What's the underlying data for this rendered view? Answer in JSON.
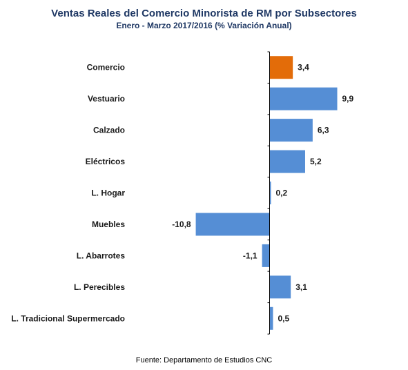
{
  "chart_data": {
    "type": "bar",
    "orientation": "horizontal",
    "title": "Ventas Reales del Comercio Minorista de RM por Subsectores",
    "subtitle": "Enero - Marzo  2017/2016 (% Variación Anual)",
    "categories": [
      "Comercio",
      "Vestuario",
      "Calzado",
      "Eléctricos",
      "L. Hogar",
      "Muebles",
      "L. Abarrotes",
      "L. Perecibles",
      "L. Tradicional Supermercado"
    ],
    "values": [
      3.4,
      9.9,
      6.3,
      5.2,
      0.2,
      -10.8,
      -1.1,
      3.1,
      0.5
    ],
    "value_labels": [
      "3,4",
      "9,9",
      "6,3",
      "5,2",
      "0,2",
      "-10,8",
      "-1,1",
      "3,1",
      "0,5"
    ],
    "xlim": [
      -11,
      10
    ],
    "highlight_category": "Comercio",
    "colors": {
      "bar": "#558ed5",
      "highlight": "#e36c09",
      "axis": "#000000"
    },
    "grid": false,
    "legend": "none"
  },
  "footer": {
    "source": "Fuente: Departamento de Estudios CNC"
  }
}
